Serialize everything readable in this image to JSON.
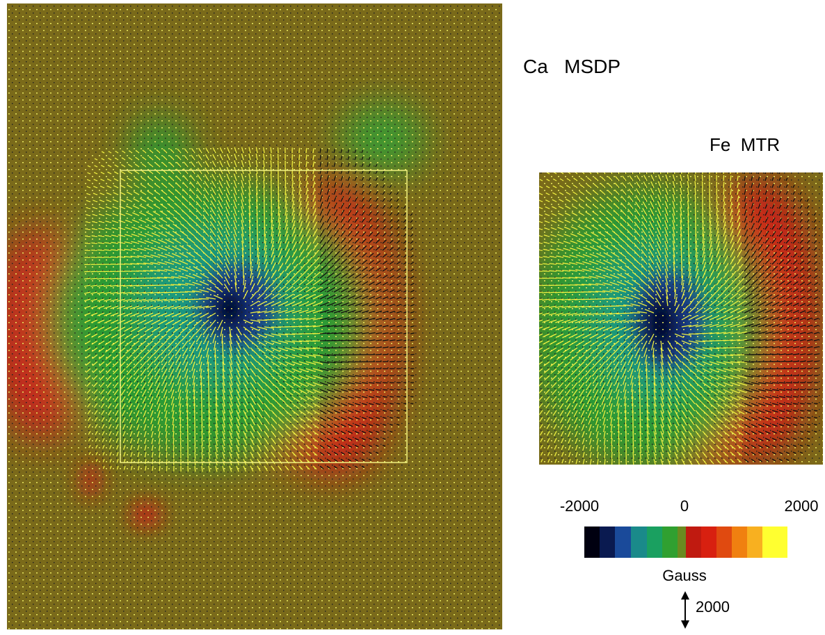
{
  "panels": {
    "left": "Ca   MSDP",
    "right": "Fe  MTR"
  },
  "colorbar": {
    "labels": [
      "-2000",
      "0",
      "2000"
    ],
    "unit": "Gauss"
  },
  "scale_arrow": "2000"
}
